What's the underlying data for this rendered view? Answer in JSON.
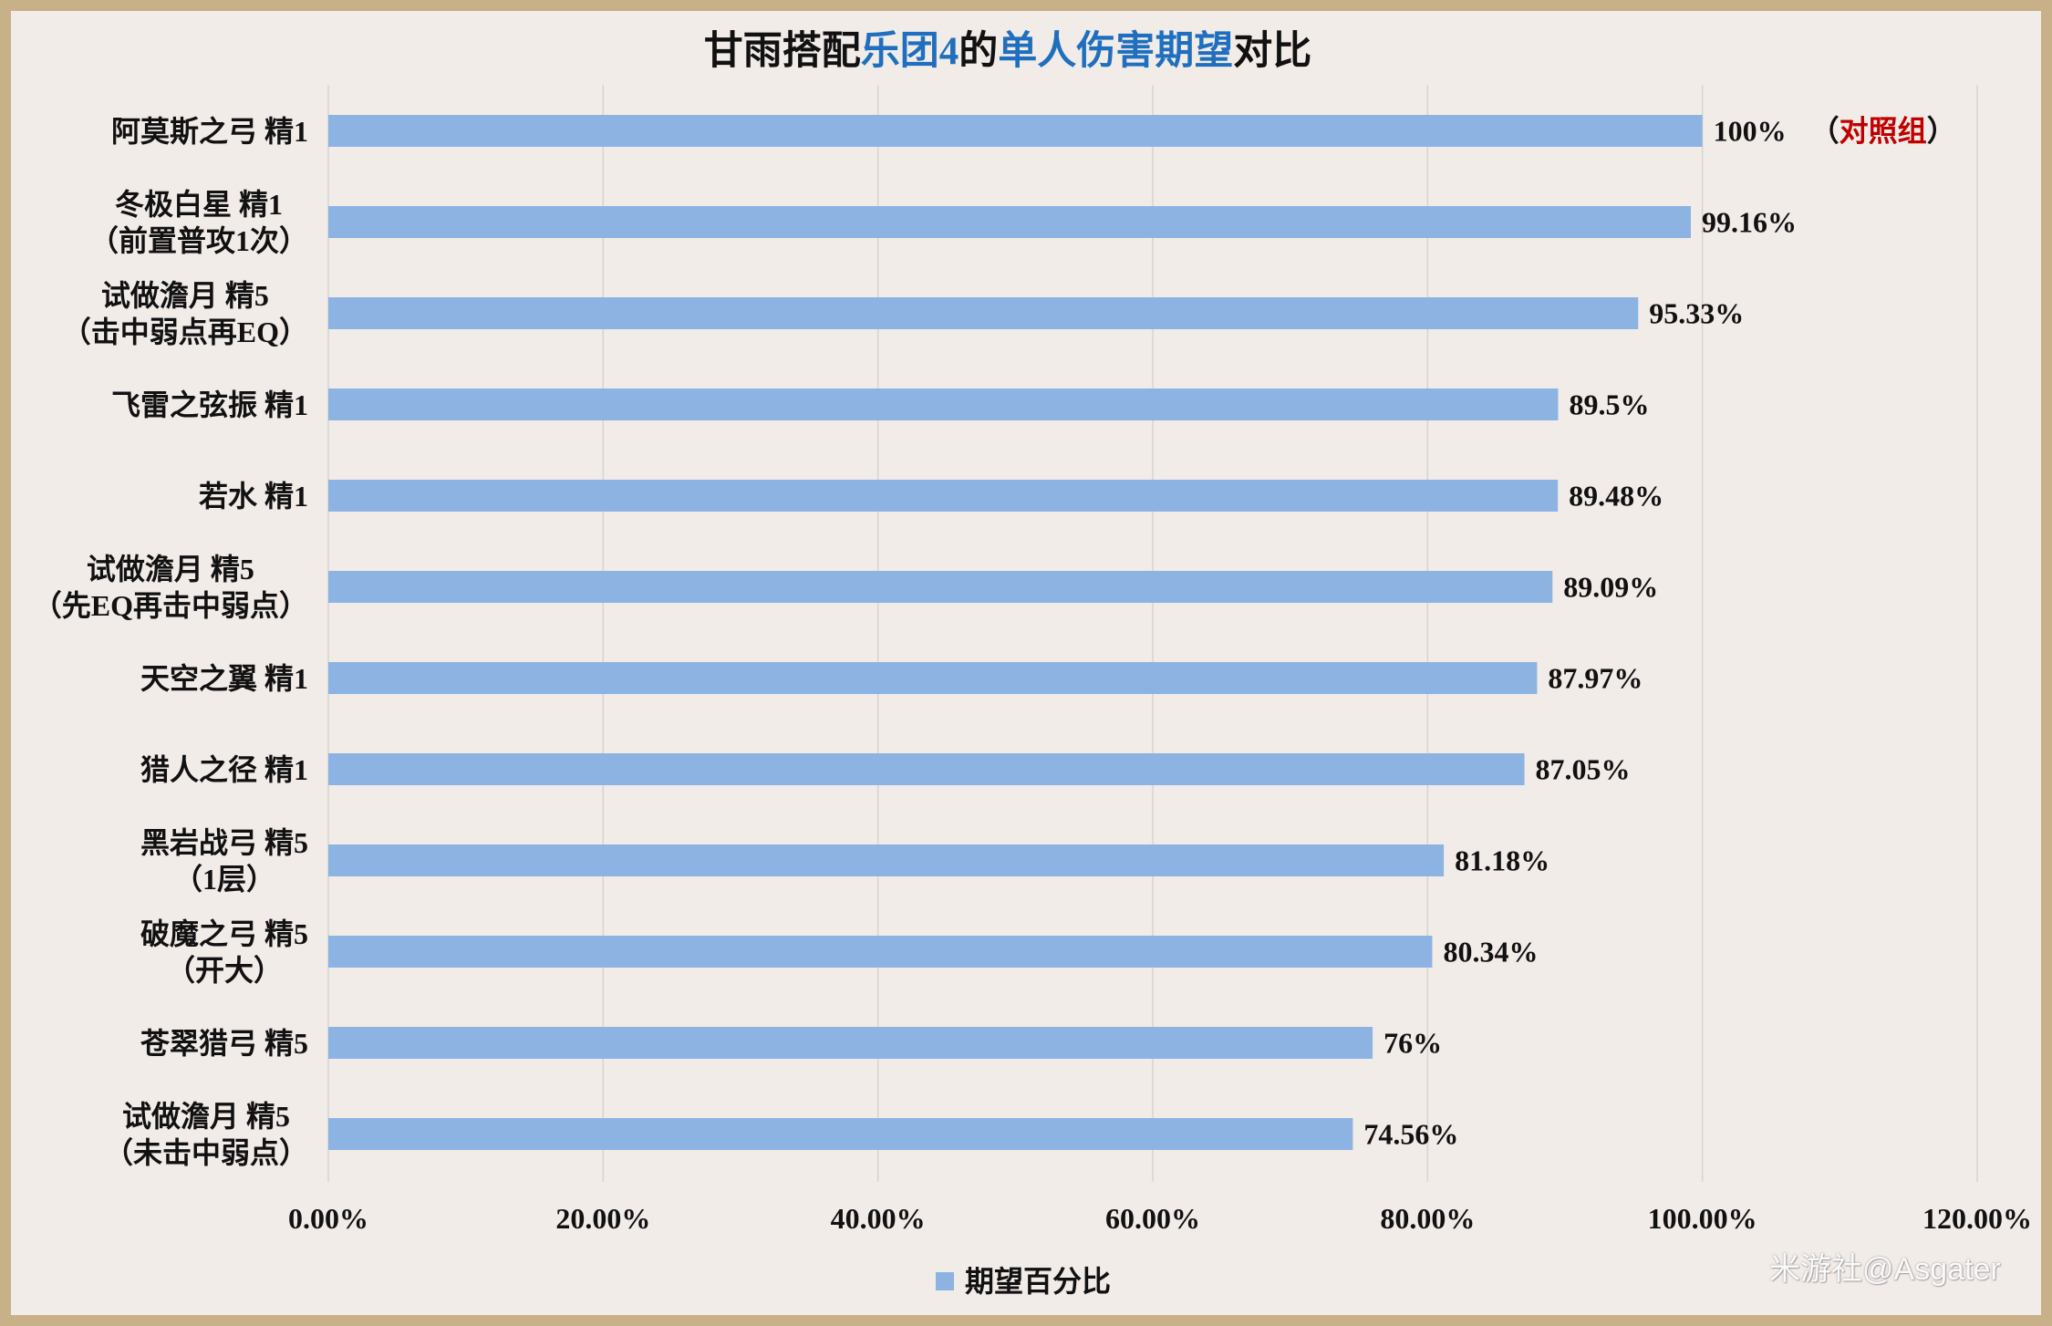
{
  "colors": {
    "background": "#f2ece9",
    "frame": "#c8b089",
    "bar": "#8db3e2",
    "gridline": "#d7d3d0",
    "title_highlight": "#1f6fbe",
    "annotation": "#c00000",
    "text": "#111111"
  },
  "chart_data": {
    "type": "bar",
    "orientation": "horizontal",
    "title_segments": [
      {
        "text": "甘雨搭配",
        "highlight": false
      },
      {
        "text": "乐团4",
        "highlight": true
      },
      {
        "text": "的",
        "highlight": false
      },
      {
        "text": "单人伤害期望",
        "highlight": true
      },
      {
        "text": "对比",
        "highlight": false
      }
    ],
    "categories": [
      "阿莫斯之弓 精1",
      "冬极白星 精1\n（前置普攻1次）",
      "试做澹月 精5\n（击中弱点再EQ）",
      "飞雷之弦振 精1",
      "若水 精1",
      "试做澹月 精5\n（先EQ再击中弱点）",
      "天空之翼 精1",
      "猎人之径 精1",
      "黑岩战弓 精5\n（1层）",
      "破魔之弓 精5\n（开大）",
      "苍翠猎弓 精5",
      "试做澹月 精5\n（未击中弱点）"
    ],
    "series": [
      {
        "name": "期望百分比",
        "values": [
          100,
          99.16,
          95.33,
          89.5,
          89.48,
          89.09,
          87.97,
          87.05,
          81.18,
          80.34,
          76,
          74.56
        ]
      }
    ],
    "data_labels": [
      "100%",
      "99.16%",
      "95.33%",
      "89.5%",
      "89.48%",
      "89.09%",
      "87.97%",
      "87.05%",
      "81.18%",
      "80.34%",
      "76%",
      "74.56%"
    ],
    "annotation": {
      "category_index": 0,
      "open": "（",
      "text": "对照组",
      "close": "）"
    },
    "xlim": [
      0,
      120
    ],
    "xticks": [
      0,
      20,
      40,
      60,
      80,
      100,
      120
    ],
    "xtick_labels": [
      "0.00%",
      "20.00%",
      "40.00%",
      "60.00%",
      "80.00%",
      "100.00%",
      "120.00%"
    ],
    "xlabel": "",
    "ylabel": "",
    "grid": "vertical",
    "legend": {
      "position": "bottom"
    }
  },
  "watermark": "米游社@Asgater"
}
